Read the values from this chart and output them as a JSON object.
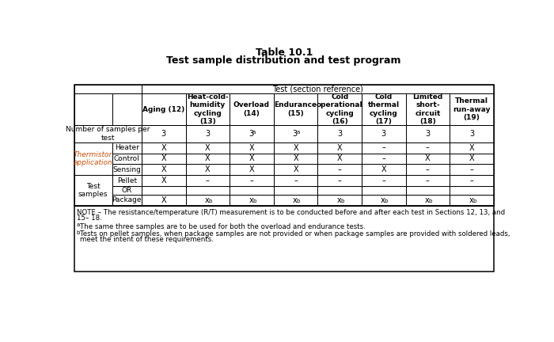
{
  "title_line1": "Table 10.1",
  "title_line2": "Test sample distribution and test program",
  "header_row1": "Test (section reference)",
  "col_headers": [
    "Aging (12)",
    "Heat-cold-\nhumidity\ncycling\n(13)",
    "Overload\n(14)",
    "Endurance\n(15)",
    "Cold\noperational\ncycling\n(16)",
    "Cold\nthermal\ncycling\n(17)",
    "Limited\nshort-\ncircuit\n(18)",
    "Thermal\nrun-away\n(19)"
  ],
  "samples_values": [
    "3",
    "3",
    "3a",
    "3a",
    "3",
    "3",
    "3",
    "3"
  ],
  "therm_rows": [
    {
      "sub": "Heater",
      "vals": [
        "X",
        "X",
        "X",
        "X",
        "X",
        "–",
        "–",
        "X"
      ]
    },
    {
      "sub": "Control",
      "vals": [
        "X",
        "X",
        "X",
        "X",
        "X",
        "–",
        "X",
        "X"
      ]
    },
    {
      "sub": "Sensing",
      "vals": [
        "X",
        "X",
        "X",
        "X",
        "–",
        "X",
        "–",
        "–"
      ]
    }
  ],
  "test_rows": [
    {
      "sub": "Pellet",
      "vals": [
        "X",
        "–",
        "–",
        "–",
        "–",
        "–",
        "–",
        "–"
      ]
    },
    {
      "sub": "OR",
      "vals": [
        "",
        "",
        "",
        "",
        "",
        "",
        "",
        ""
      ]
    },
    {
      "sub": "Package",
      "vals": [
        "X",
        "xb",
        "xb",
        "xb",
        "xb",
        "xb",
        "xb",
        "xb"
      ]
    }
  ],
  "note1": "NOTE – The resistance/temperature (R/T) measurement is to be conducted before and after each test in Sections 12, 13, and\n15– 18.",
  "note2a": "a",
  "note2b": "The same three samples are to be used for both the overload and endurance tests.",
  "note3a": "b",
  "note3b": "Tests on pellet samples, when package samples are not provided or when package samples are provided with soldered leads,\nmeet the intent of these requirements.",
  "bg_color": "#ffffff",
  "border_color": "#000000",
  "thermistor_color": "#c8500a",
  "text_color": "#000000"
}
